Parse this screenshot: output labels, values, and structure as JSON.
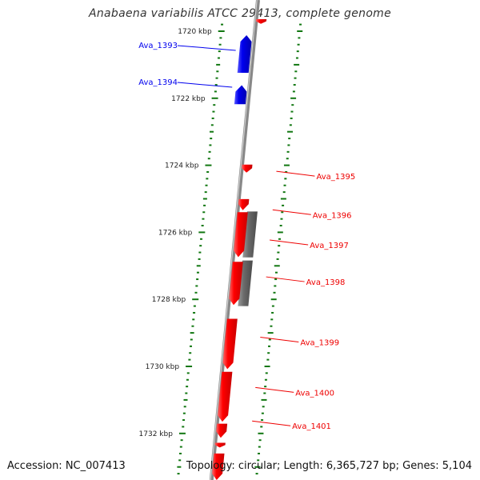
{
  "title": "Anabaena variabilis ATCC 29413, complete genome",
  "accession": "Accession: NC_007413",
  "info": "Topology: circular; Length: 6,365,727 bp; Genes: 5,104",
  "colors": {
    "forward_gene": "#0000ee",
    "reverse_gene": "#ee0000",
    "other_feature": "#666666",
    "ticks": "#117711",
    "backbone": "#888888"
  },
  "scale": {
    "range_kbp": [
      1719.6,
      1733.6
    ],
    "labels": [
      {
        "kbp": 1720,
        "text": "1720 kbp"
      },
      {
        "kbp": 1722,
        "text": "1722 kbp"
      },
      {
        "kbp": 1724,
        "text": "1724 kbp"
      },
      {
        "kbp": 1726,
        "text": "1726 kbp"
      },
      {
        "kbp": 1728,
        "text": "1728 kbp"
      },
      {
        "kbp": 1730,
        "text": "1730 kbp"
      },
      {
        "kbp": 1732,
        "text": "1732 kbp"
      }
    ]
  },
  "genes": [
    {
      "id": "Ava_1393",
      "strand": "+",
      "start_kbp": 1720.12,
      "end_kbp": 1721.24,
      "labeled": true
    },
    {
      "id": "Ava_1394",
      "strand": "+",
      "start_kbp": 1721.61,
      "end_kbp": 1722.18,
      "labeled": true
    },
    {
      "id": "Ava_1395",
      "strand": "-",
      "start_kbp": 1723.98,
      "end_kbp": 1724.22,
      "labeled": true
    },
    {
      "id": "Ava_1396",
      "strand": "-",
      "start_kbp": 1725.01,
      "end_kbp": 1725.34,
      "labeled": true
    },
    {
      "id": "Ava_1397",
      "strand": "-",
      "start_kbp": 1725.4,
      "end_kbp": 1726.74,
      "labeled": true
    },
    {
      "id": "Ava_1398",
      "strand": "-",
      "start_kbp": 1726.88,
      "end_kbp": 1728.17,
      "labeled": true
    },
    {
      "id": "Ava_1399",
      "strand": "-",
      "start_kbp": 1728.58,
      "end_kbp": 1730.08,
      "labeled": true
    },
    {
      "id": "Ava_1400",
      "strand": "-",
      "start_kbp": 1730.16,
      "end_kbp": 1731.65,
      "labeled": true
    },
    {
      "id": "Ava_1401",
      "strand": "-",
      "start_kbp": 1731.71,
      "end_kbp": 1732.13,
      "labeled": true
    },
    {
      "id": "",
      "strand": "-",
      "start_kbp": 1719.6,
      "end_kbp": 1719.78,
      "labeled": false
    },
    {
      "id": "",
      "strand": "-",
      "start_kbp": 1732.28,
      "end_kbp": 1732.42,
      "labeled": false
    },
    {
      "id": "",
      "strand": "-",
      "start_kbp": 1732.6,
      "end_kbp": 1733.6,
      "labeled": false
    }
  ],
  "features": [
    {
      "strand": "-",
      "start_kbp": 1725.38,
      "end_kbp": 1726.75
    },
    {
      "strand": "-",
      "start_kbp": 1726.84,
      "end_kbp": 1728.2
    }
  ],
  "label_anchor_kbp": {
    "Ava_1393": 1720.5,
    "Ava_1394": 1721.6,
    "Ava_1395": 1724.25,
    "Ava_1396": 1725.4,
    "Ava_1397": 1726.3,
    "Ava_1398": 1727.4,
    "Ava_1399": 1729.2,
    "Ava_1400": 1730.7,
    "Ava_1401": 1731.7
  }
}
